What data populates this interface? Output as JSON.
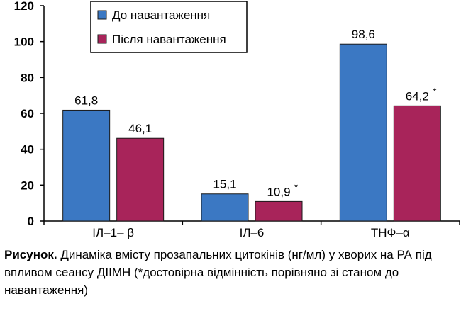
{
  "chart_data": {
    "type": "bar",
    "categories": [
      "ІЛ–1– β",
      "ІЛ–6",
      "ТНФ–α"
    ],
    "series": [
      {
        "name": "До навантаження",
        "color": "#3b78c3",
        "values": [
          61.8,
          15.1,
          98.6
        ],
        "labels": [
          "61,8",
          "15,1",
          "98,6"
        ]
      },
      {
        "name": "Після навантаження",
        "color": "#a8245a",
        "values": [
          46.1,
          10.9,
          64.2
        ],
        "labels": [
          "46,1",
          "10,9",
          "64,2"
        ],
        "significant": [
          false,
          true,
          true
        ]
      }
    ],
    "significance_marker": "*",
    "ylim": [
      0,
      120
    ],
    "yticks": [
      0,
      20,
      40,
      60,
      80,
      100,
      120
    ],
    "legend_position": "top-center",
    "grid": false
  },
  "caption": {
    "lead": "Рисунок.",
    "text": " Динаміка вмісту прозапальних цитокінів (нг/мл) у хворих на РА під впливом сеансу ДІІМН (*достовірна відмінність порівняно зі станом до навантаження)"
  }
}
